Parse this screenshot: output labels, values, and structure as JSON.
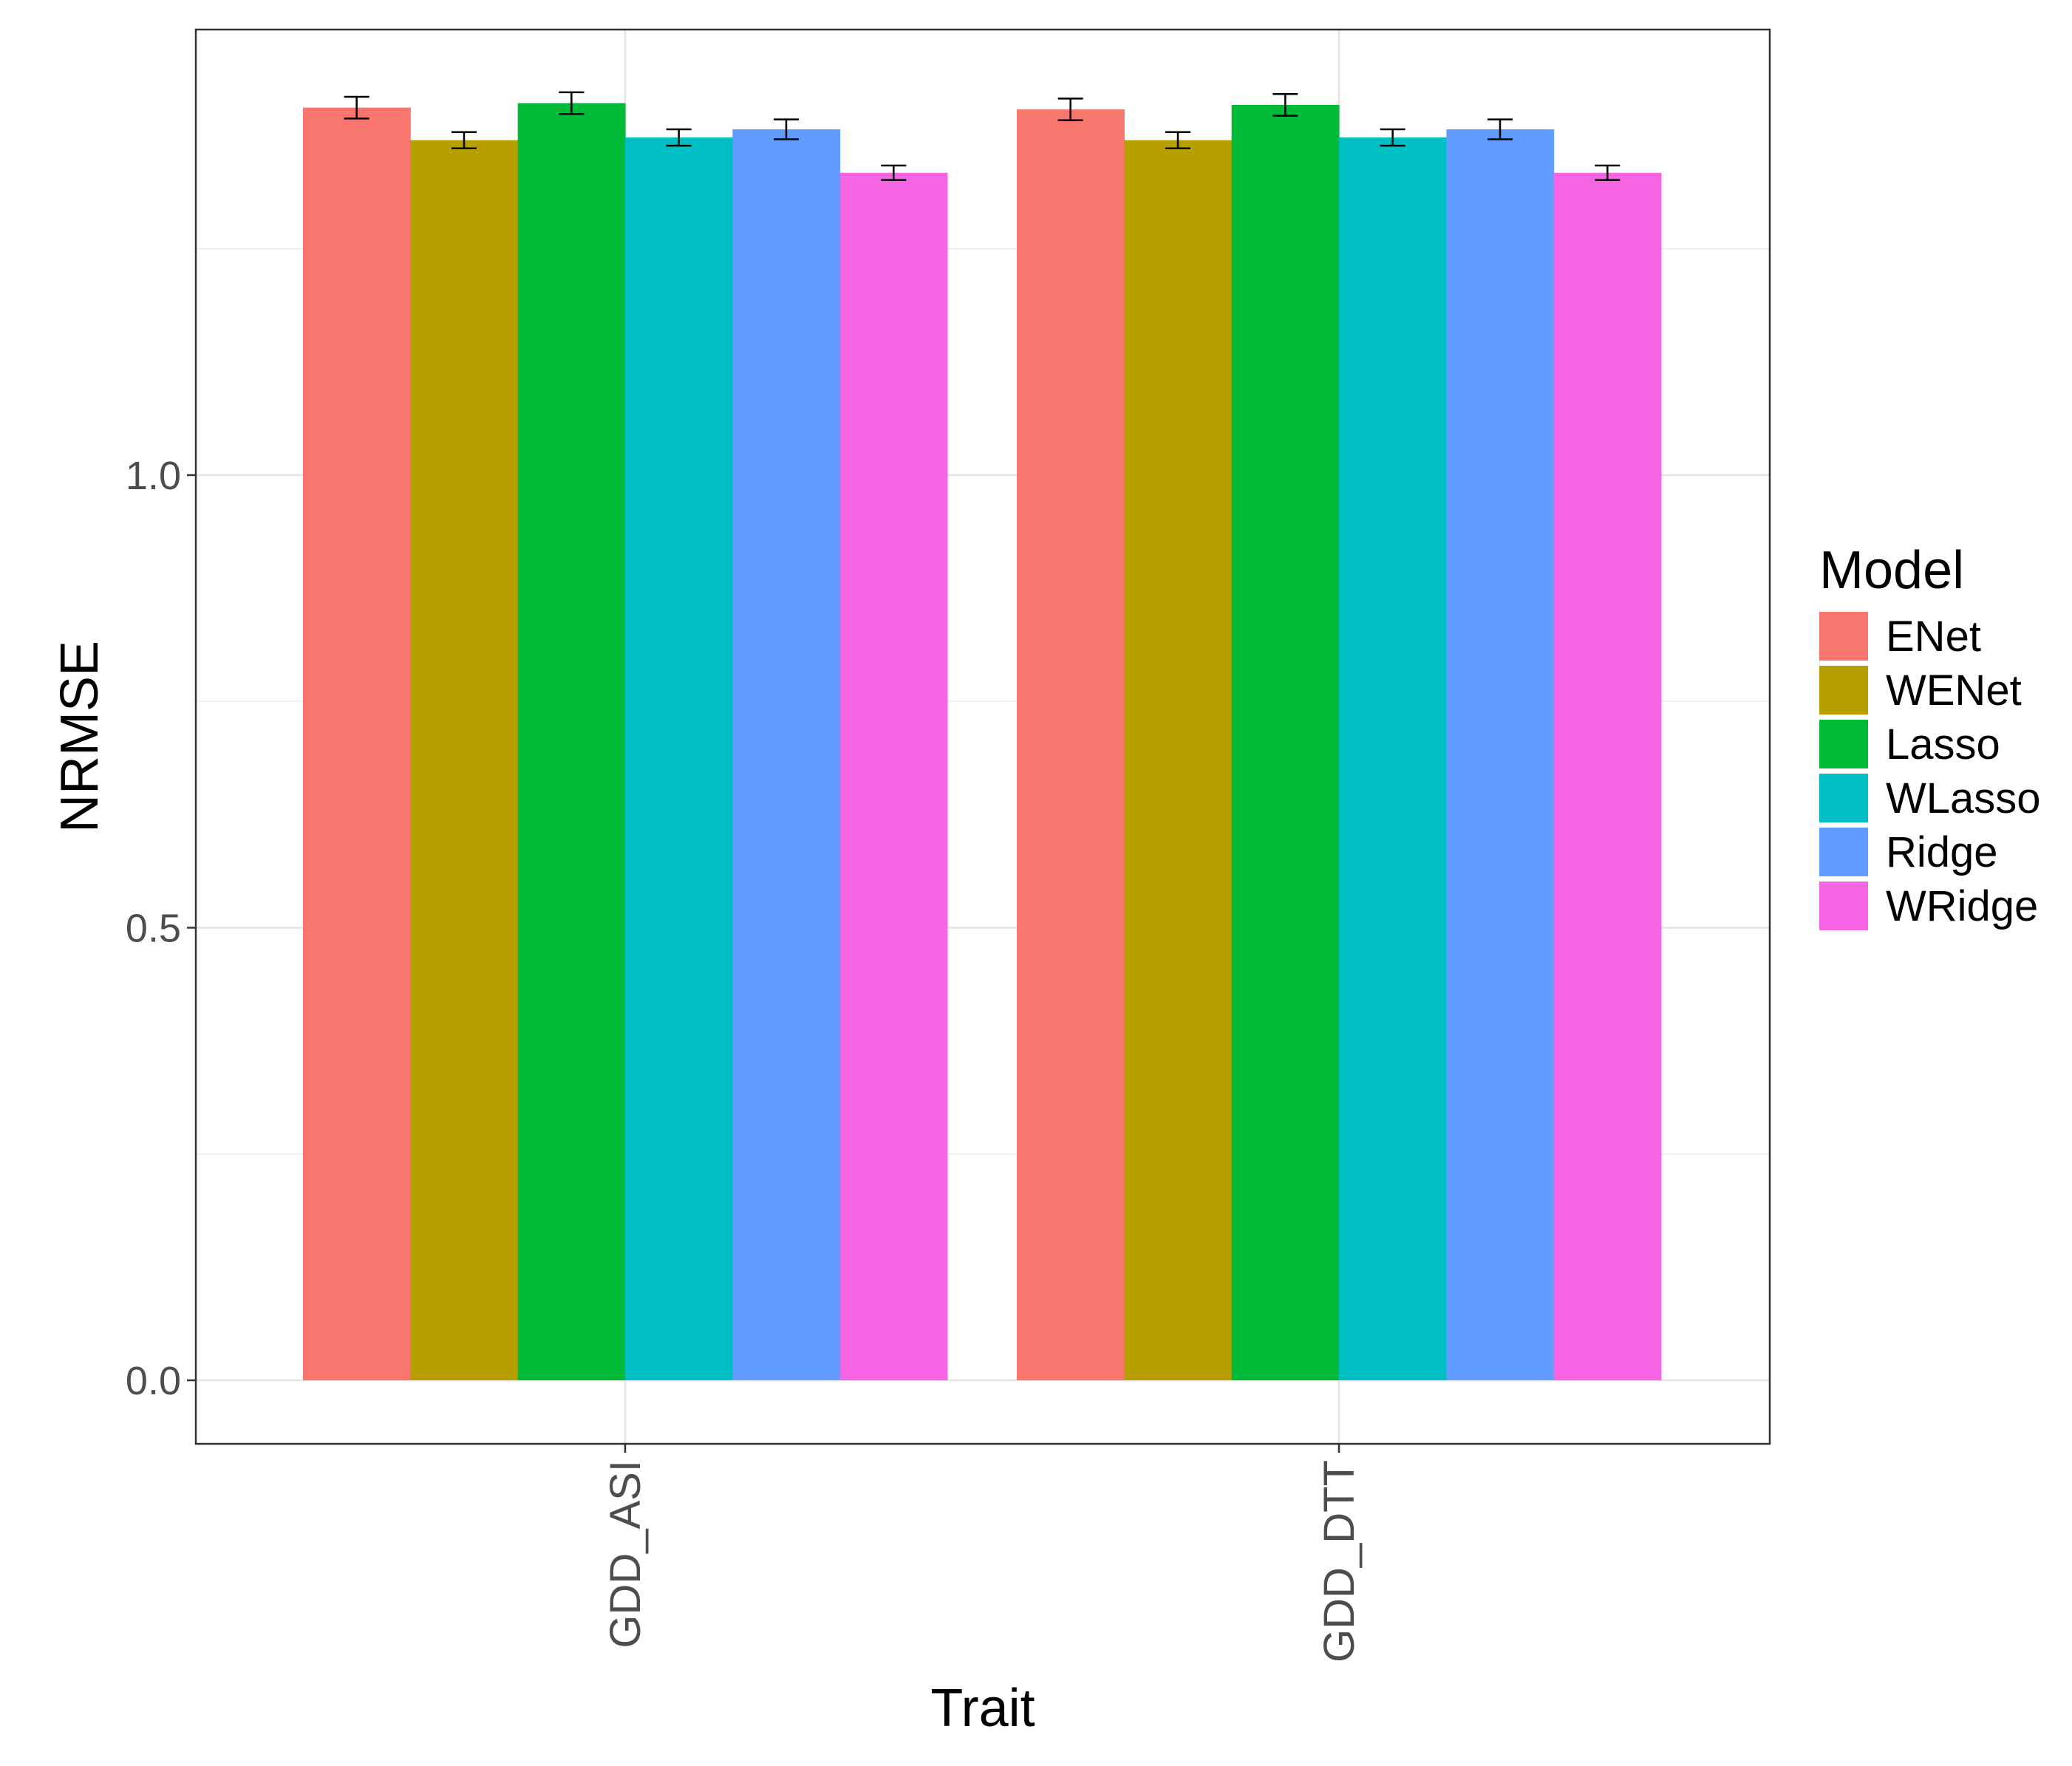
{
  "chart_data": {
    "type": "bar",
    "categories": [
      "GDD_ASI",
      "GDD_DTT"
    ],
    "series": [
      {
        "name": "ENet",
        "color": "#F8766D",
        "values": [
          1.406,
          1.404
        ],
        "error": [
          0.012,
          0.012
        ]
      },
      {
        "name": "WENet",
        "color": "#B79F00",
        "values": [
          1.37,
          1.37
        ],
        "error": [
          0.009,
          0.009
        ]
      },
      {
        "name": "Lasso",
        "color": "#00BA38",
        "values": [
          1.411,
          1.409
        ],
        "error": [
          0.012,
          0.012
        ]
      },
      {
        "name": "WLasso",
        "color": "#00BFC4",
        "values": [
          1.373,
          1.373
        ],
        "error": [
          0.009,
          0.009
        ]
      },
      {
        "name": "Ridge",
        "color": "#619CFF",
        "values": [
          1.382,
          1.382
        ],
        "error": [
          0.011,
          0.011
        ]
      },
      {
        "name": "WRidge",
        "color": "#F564E3",
        "values": [
          1.334,
          1.334
        ],
        "error": [
          0.008,
          0.008
        ]
      }
    ],
    "xlabel": "Trait",
    "ylabel": "NRMSE",
    "yticks": [
      0.0,
      0.5,
      1.0
    ],
    "ytick_labels": [
      "0.0",
      "0.5",
      "1.0"
    ],
    "ylim": [
      -0.07,
      1.49
    ],
    "x_tick_label_rotation": "vertical",
    "legend": {
      "title": "Model",
      "position": "right"
    },
    "grid": true,
    "error_bars": true
  }
}
